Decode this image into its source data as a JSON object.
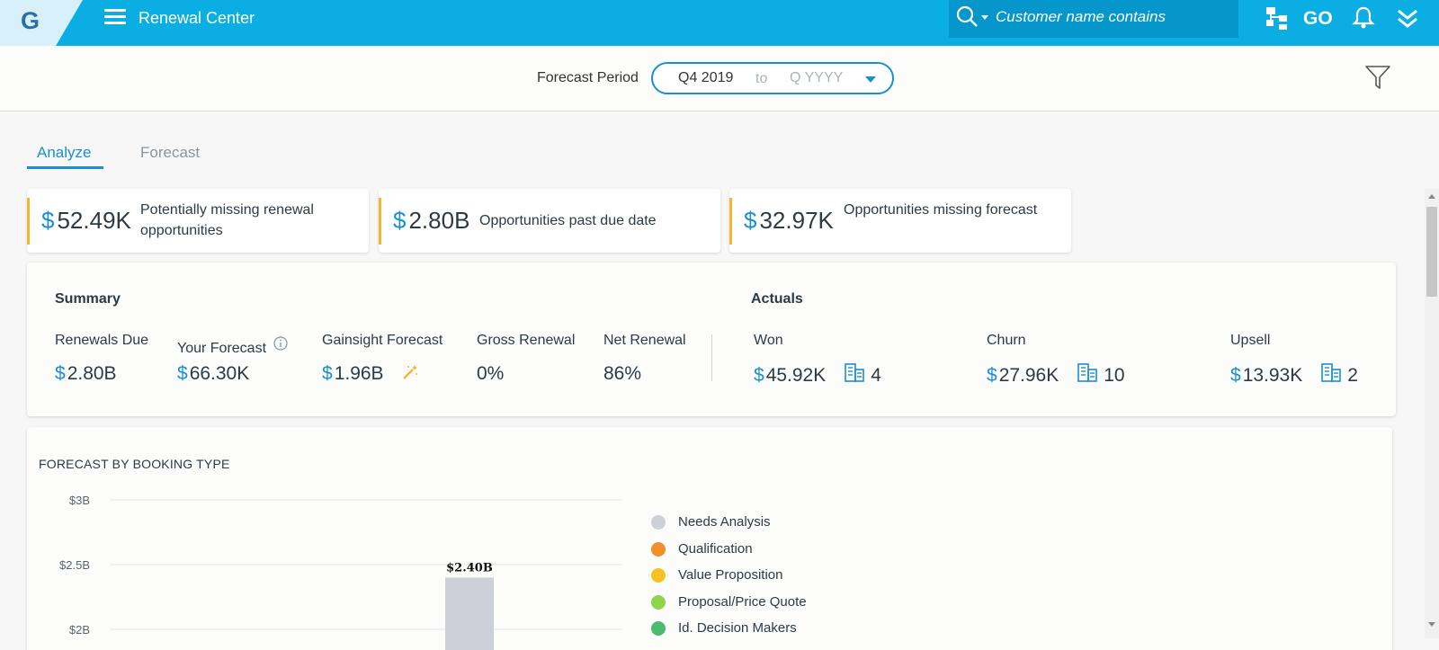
{
  "app": {
    "title": "Renewal Center"
  },
  "search": {
    "placeholder": "Customer name contains"
  },
  "header": {
    "go_label": "GO"
  },
  "period": {
    "label": "Forecast Period",
    "from": "Q4 2019",
    "to_text": "to",
    "end_placeholder": "Q YYYY"
  },
  "tabs": [
    {
      "label": "Analyze"
    },
    {
      "label": "Forecast"
    }
  ],
  "alerts": [
    {
      "currency": "$",
      "amount": "52.49K",
      "text": "Potentially missing renewal opportunities"
    },
    {
      "currency": "$",
      "amount": "2.80B",
      "text": "Opportunities past due date"
    },
    {
      "currency": "$",
      "amount": "32.97K",
      "text": "Opportunities missing forecast"
    }
  ],
  "summary": {
    "title": "Summary",
    "metrics": [
      {
        "label": "Renewals Due",
        "currency": "$",
        "value": "2.80B"
      },
      {
        "label": "Your Forecast",
        "currency": "$",
        "value": "66.30K"
      },
      {
        "label": "Gainsight Forecast",
        "currency": "$",
        "value": "1.96B"
      },
      {
        "label": "Gross Renewal",
        "value": "0%"
      },
      {
        "label": "Net Renewal",
        "value": "86%"
      }
    ]
  },
  "actuals": {
    "title": "Actuals",
    "items": [
      {
        "label": "Won",
        "currency": "$",
        "value": "45.92K",
        "count": "4"
      },
      {
        "label": "Churn",
        "currency": "$",
        "value": "27.96K",
        "count": "10"
      },
      {
        "label": "Upsell",
        "currency": "$",
        "value": "13.93K",
        "count": "2"
      }
    ]
  },
  "chart": {
    "title": "FORECAST BY BOOKING TYPE",
    "legend": [
      {
        "label": "Needs Analysis",
        "color": "#cdd0d6"
      },
      {
        "label": "Qualification",
        "color": "#f28e2b"
      },
      {
        "label": "Value Proposition",
        "color": "#f6c223"
      },
      {
        "label": "Proposal/Price Quote",
        "color": "#8ed54a"
      },
      {
        "label": "Id. Decision Makers",
        "color": "#4cbb6c"
      }
    ]
  },
  "chart_data": {
    "type": "bar",
    "title": "FORECAST BY BOOKING TYPE",
    "ytick_labels": [
      "$3B",
      "$2.5B",
      "$2B"
    ],
    "yticks": [
      3,
      2.5,
      2
    ],
    "series": [
      {
        "name": "Needs Analysis",
        "values": [
          2.4
        ]
      }
    ],
    "data_labels": [
      "$2.40B"
    ],
    "ylim": [
      0,
      3
    ],
    "grid": true,
    "legend_position": "right"
  }
}
